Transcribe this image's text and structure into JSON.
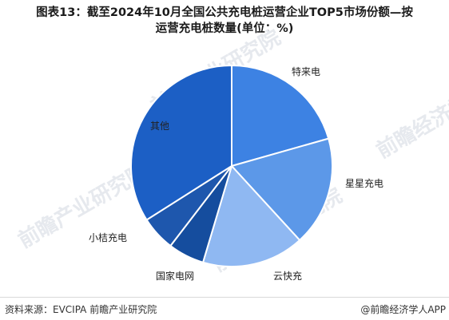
{
  "title_line1": "图表13：截至2024年10月全国公共充电桩运营企业TOP5市场份额—按",
  "title_line2": "运营充电桩数量(单位：%)",
  "footer": {
    "source": "资料来源：EVCIPA 前瞻产业研究院",
    "brand": "@前瞻经济学人APP"
  },
  "watermarks": [
    "前瞻产业研究院",
    "前瞻产业研究院",
    "前瞻产业研究院",
    "前瞻经济学人"
  ],
  "chart_data": {
    "type": "pie",
    "title": "图表13：截至2024年10月全国公共充电桩运营企业TOP5市场份额—按运营充电桩数量(单位：%)",
    "slices": [
      {
        "label": "特来电",
        "value": 20.6,
        "color": "#3d82e3"
      },
      {
        "label": "星星充电",
        "value": 17.6,
        "color": "#5c98e8"
      },
      {
        "label": "云快充",
        "value": 16.4,
        "color": "#8fb8f2"
      },
      {
        "label": "国家电网",
        "value": 5.8,
        "color": "#154d9e"
      },
      {
        "label": "小桔充电",
        "value": 5.6,
        "color": "#1e57ad"
      },
      {
        "label": "其他",
        "value": 34.0,
        "color": "#1c5fc5"
      }
    ],
    "start_angle_deg": 0,
    "direction": "clockwise",
    "data_labels": false
  }
}
